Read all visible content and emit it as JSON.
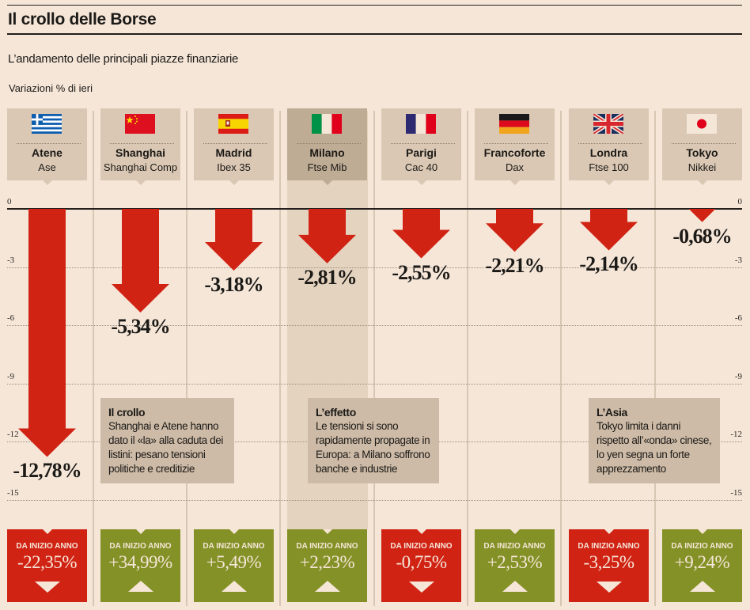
{
  "header": {
    "title": "Il crollo delle Borse",
    "subtitle": "L’andamento delle principali piazze finanziarie",
    "axis_caption": "Variazioni % di ieri"
  },
  "colors": {
    "background": "#f5e6d8",
    "down": "#d12314",
    "up": "#849126",
    "card": "#dac8b4",
    "card_highlight": "#bfac95"
  },
  "chart_data": {
    "type": "bar",
    "title": "Il crollo delle Borse",
    "subtitle": "L’andamento delle principali piazze finanziarie",
    "ylabel": "Variazioni % di ieri",
    "xlabel": "",
    "ylim": [
      -15,
      0
    ],
    "yticks": [
      0,
      -3,
      -6,
      -9,
      -12,
      -15
    ],
    "ytick_labels": [
      "0",
      "-3",
      "-6",
      "-9",
      "-12",
      "-15"
    ],
    "grid": true,
    "categories": [
      "Atene",
      "Shanghai",
      "Madrid",
      "Milano",
      "Parigi",
      "Francoforte",
      "Londra",
      "Tokyo"
    ],
    "series": [
      {
        "name": "Variazione % di ieri",
        "values": [
          -12.78,
          -5.34,
          -3.18,
          -2.81,
          -2.55,
          -2.21,
          -2.14,
          -0.68
        ]
      },
      {
        "name": "Da inizio anno",
        "values": [
          -22.35,
          34.99,
          5.49,
          2.23,
          -0.75,
          2.53,
          -3.25,
          9.24
        ]
      }
    ],
    "highlight": "Milano"
  },
  "markets": [
    {
      "city": "Atene",
      "index": "Ase",
      "flag": "greece-flag",
      "change": -12.78,
      "change_label": "-12,78%",
      "ytd_label": "DA INIZIO ANNO",
      "ytd": "-22,35%",
      "ytd_dir": "down"
    },
    {
      "city": "Shanghai",
      "index": "Shanghai Comp",
      "flag": "china-flag",
      "change": -5.34,
      "change_label": "-5,34%",
      "ytd_label": "DA INIZIO ANNO",
      "ytd": "+34,99%",
      "ytd_dir": "up"
    },
    {
      "city": "Madrid",
      "index": "Ibex 35",
      "flag": "spain-flag",
      "change": -3.18,
      "change_label": "-3,18%",
      "ytd_label": "DA INIZIO ANNO",
      "ytd": "+5,49%",
      "ytd_dir": "up"
    },
    {
      "city": "Milano",
      "index": "Ftse Mib",
      "flag": "italy-flag",
      "change": -2.81,
      "change_label": "-2,81%",
      "ytd_label": "DA INIZIO ANNO",
      "ytd": "+2,23%",
      "ytd_dir": "up"
    },
    {
      "city": "Parigi",
      "index": "Cac 40",
      "flag": "france-flag",
      "change": -2.55,
      "change_label": "-2,55%",
      "ytd_label": "DA INIZIO ANNO",
      "ytd": "-0,75%",
      "ytd_dir": "down"
    },
    {
      "city": "Francoforte",
      "index": "Dax",
      "flag": "germany-flag",
      "change": -2.21,
      "change_label": "-2,21%",
      "ytd_label": "DA INIZIO ANNO",
      "ytd": "+2,53%",
      "ytd_dir": "up"
    },
    {
      "city": "Londra",
      "index": "Ftse 100",
      "flag": "uk-flag",
      "change": -2.14,
      "change_label": "-2,14%",
      "ytd_label": "DA INIZIO ANNO",
      "ytd": "-3,25%",
      "ytd_dir": "down"
    },
    {
      "city": "Tokyo",
      "index": "Nikkei",
      "flag": "japan-flag",
      "change": -0.68,
      "change_label": "-0,68%",
      "ytd_label": "DA INIZIO ANNO",
      "ytd": "+9,24%",
      "ytd_dir": "up"
    }
  ],
  "notes": [
    {
      "title": "Il crollo",
      "text": "Shanghai e Atene hanno dato il «la» alla caduta dei listini: pesano tensioni politiche e creditizie"
    },
    {
      "title": "L’effetto",
      "text": "Le tensioni si sono rapidamente propagate in Europa: a Milano soffrono banche e industrie"
    },
    {
      "title": "L’Asia",
      "text": "Tokyo limita i danni rispetto all’«onda» cinese, lo yen segna un forte apprezzamento"
    }
  ]
}
